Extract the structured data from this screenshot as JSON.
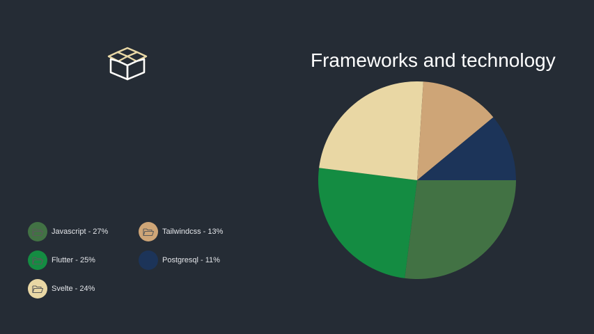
{
  "decor": {
    "icon": "open-box-icon",
    "icon_color": "#ead9a6"
  },
  "chart_data": {
    "type": "pie",
    "title": "Frameworks and technology",
    "start_angle_deg": 0,
    "direction": "clockwise",
    "slices": [
      {
        "label": "Javascript - 27%",
        "name": "Javascript",
        "value": 27,
        "color": "#427244"
      },
      {
        "label": "Flutter - 25%",
        "name": "Flutter",
        "value": 25,
        "color": "#148c42"
      },
      {
        "label": "Svelte - 24%",
        "name": "Svelte",
        "value": 24,
        "color": "#e9d7a4"
      },
      {
        "label": "Tailwindcss - 13%",
        "name": "Tailwindcss",
        "value": 13,
        "color": "#cea577"
      },
      {
        "label": "Postgresql - 11%",
        "name": "Postgresql",
        "value": 11,
        "color": "#1c3459"
      }
    ],
    "legend": {
      "placement": "bottom-left",
      "icon": "folder-open-icon"
    }
  }
}
